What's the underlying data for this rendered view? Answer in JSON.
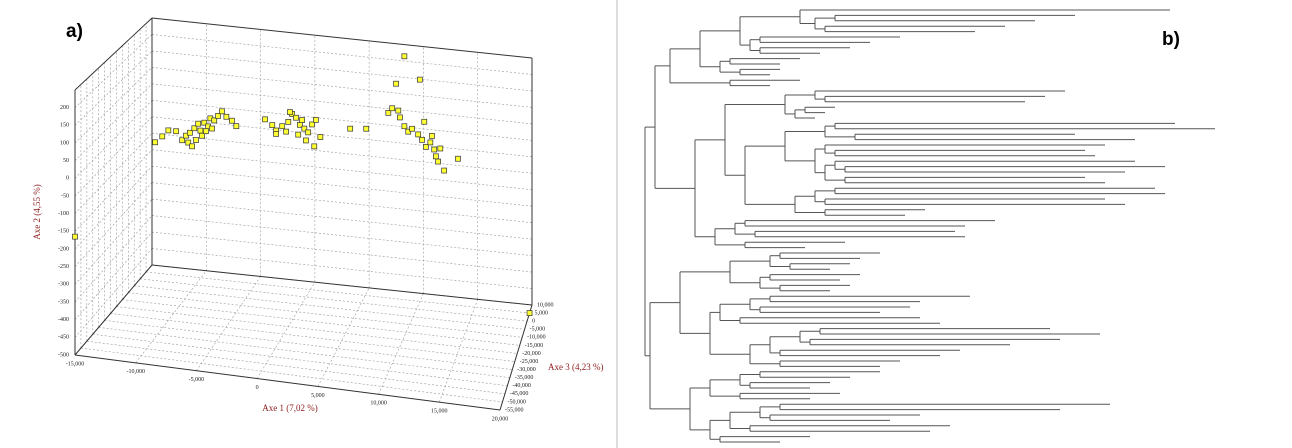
{
  "chart_data": [
    {
      "type": "scatter3d",
      "panel_label": "a)",
      "xlabel": "Axe 1 (7,02 %)",
      "ylabel": "Axe 2 (4,55 %)",
      "zlabel": "Axe 3 (4,23 %)",
      "x": [
        -15000,
        -13650,
        -13000,
        -12450,
        -11750,
        -11200,
        -10850,
        -10500,
        -10100,
        -9750,
        -9550,
        -9200,
        -8850,
        -8650,
        -8300,
        -7950,
        -7600,
        -7200,
        -6700,
        -6300,
        -10650,
        -10300,
        -9950,
        -9400,
        -9050,
        -8500,
        -3700,
        -3050,
        -2700,
        -2150,
        -1600,
        -1250,
        -900,
        -550,
        -150,
        200,
        550,
        900,
        1300,
        -2700,
        -1800,
        -700,
        0,
        750,
        -1450,
        -350,
        4000,
        5450,
        7450,
        7800,
        8150,
        8350,
        8500,
        8900,
        9250,
        9600,
        10150,
        10500,
        10850,
        11250,
        11600,
        11750,
        11950,
        12150,
        12500,
        13750,
        10300,
        8900,
        10700,
        11400,
        20000
      ],
      "y": [
        -165,
        -85,
        -65,
        -45,
        -45,
        -70,
        -55,
        -45,
        -30,
        -15,
        -35,
        -10,
        -20,
        5,
        0,
        15,
        30,
        15,
        5,
        -10,
        -75,
        -85,
        -65,
        -50,
        -35,
        -25,
        20,
        5,
        -10,
        5,
        20,
        45,
        35,
        15,
        5,
        -5,
        20,
        35,
        -15,
        -20,
        -10,
        -15,
        -30,
        -45,
        50,
        30,
        20,
        25,
        80,
        95,
        170,
        90,
        70,
        45,
        30,
        40,
        25,
        10,
        -10,
        5,
        -15,
        -35,
        -50,
        -10,
        -75,
        -35,
        190,
        255,
        65,
        25,
        -500
      ],
      "z": [
        -55000,
        0,
        0,
        0,
        0,
        0,
        0,
        0,
        0,
        0,
        0,
        0,
        0,
        0,
        0,
        0,
        0,
        0,
        0,
        0,
        0,
        0,
        0,
        0,
        0,
        0,
        0,
        0,
        0,
        0,
        0,
        0,
        0,
        0,
        0,
        0,
        0,
        0,
        0,
        0,
        0,
        0,
        0,
        0,
        0,
        0,
        0,
        0,
        0,
        0,
        0,
        0,
        0,
        0,
        0,
        0,
        0,
        0,
        0,
        0,
        0,
        0,
        0,
        0,
        0,
        0,
        0,
        0,
        0,
        0,
        5000
      ],
      "color": "#ffff33",
      "xlim": [
        -15000,
        20000
      ],
      "ylim": [
        -500,
        250
      ],
      "zlim": [
        -55000,
        10000
      ],
      "xticks": [
        {
          "value": -15000,
          "label": "-15,000"
        },
        {
          "value": -10000,
          "label": "-10,000"
        },
        {
          "value": -5000,
          "label": "-5,000"
        },
        0,
        {
          "value": 5000,
          "label": "5,000"
        },
        {
          "value": 10000,
          "label": "10,000"
        },
        {
          "value": 15000,
          "label": "15,000"
        },
        {
          "value": 20000,
          "label": "20,000"
        }
      ],
      "yticks": [
        200,
        150,
        100,
        50,
        0,
        -50,
        -100,
        -150,
        -200,
        -250,
        -300,
        -350,
        -400,
        -450,
        -500
      ],
      "zticks": [
        {
          "value": 10000,
          "label": "10,000"
        },
        {
          "value": 5000,
          "label": "5,000"
        },
        0,
        {
          "value": -5000,
          "label": "-5,000"
        },
        {
          "value": -10000,
          "label": "-10,000"
        },
        {
          "value": -15000,
          "label": "-15,000"
        },
        {
          "value": -20000,
          "label": "-20,000"
        },
        {
          "value": -25000,
          "label": "-25,000"
        },
        {
          "value": -30000,
          "label": "-30,000"
        },
        {
          "value": -35000,
          "label": "-35,000"
        },
        {
          "value": -40000,
          "label": "-40,000"
        },
        {
          "value": -45000,
          "label": "-45,000"
        },
        {
          "value": -50000,
          "label": "-50,000"
        },
        {
          "value": -55000,
          "label": "-55,000"
        }
      ],
      "grid": true
    },
    {
      "type": "dendrogram",
      "panel_label": "b)"
    }
  ]
}
